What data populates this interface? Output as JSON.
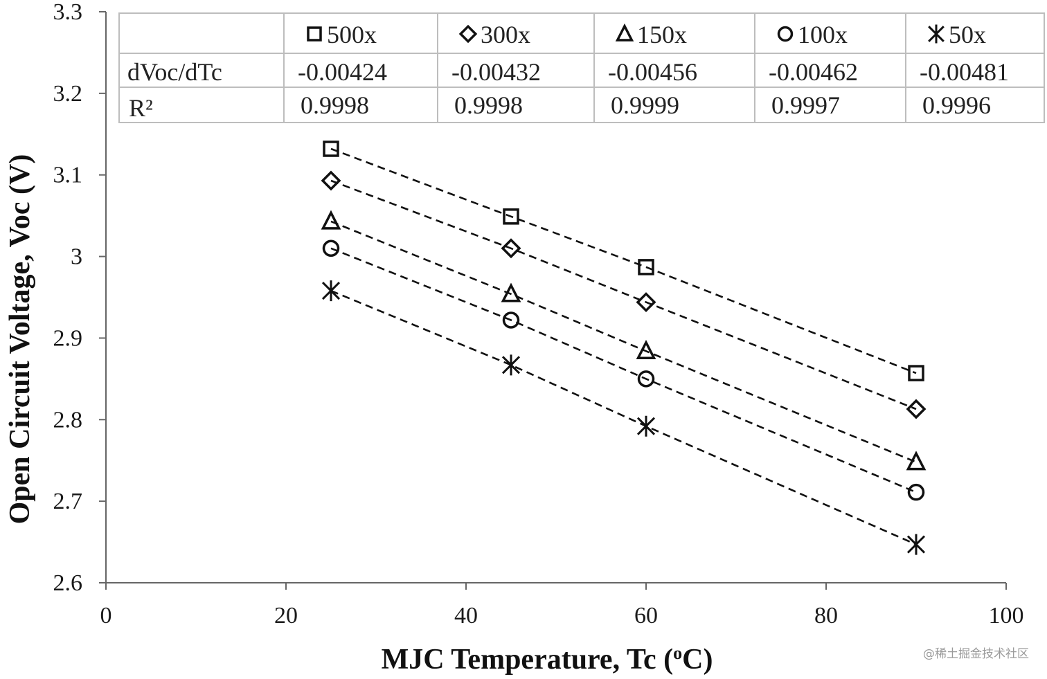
{
  "chart_data": {
    "type": "scatter",
    "xlabel": "MJC Temperature, Tc (",
    "xlabel_unit_sup": "o",
    "xlabel_unit_tail": "C)",
    "ylabel": "Open Circuit Voltage, Voc (V)",
    "xlim": [
      0,
      100
    ],
    "ylim": [
      2.6,
      3.3
    ],
    "x_ticks": [
      "0",
      "20",
      "40",
      "60",
      "80",
      "100"
    ],
    "y_ticks": [
      "2.6",
      "2.7",
      "2.8",
      "2.9",
      "3",
      "3.1",
      "3.2",
      "3.3"
    ],
    "grid": false,
    "legend_placement": "top (inside table)",
    "line_style": "dashed",
    "x": [
      25,
      45,
      60,
      90
    ],
    "series": [
      {
        "name": "500x",
        "marker": "square",
        "values": [
          3.132,
          3.049,
          2.987,
          2.857
        ]
      },
      {
        "name": "300x",
        "marker": "diamond",
        "values": [
          3.093,
          3.01,
          2.944,
          2.813
        ]
      },
      {
        "name": "150x",
        "marker": "triangle",
        "values": [
          3.043,
          2.954,
          2.884,
          2.748
        ]
      },
      {
        "name": "100x",
        "marker": "circle",
        "values": [
          3.01,
          2.922,
          2.85,
          2.711
        ]
      },
      {
        "name": "50x",
        "marker": "asterisk",
        "values": [
          2.958,
          2.867,
          2.792,
          2.647
        ]
      }
    ],
    "table": {
      "row_labels": [
        "dVoc/dTc",
        "R²"
      ],
      "dvoc_dtc": [
        "-0.00424",
        "-0.00432",
        "-0.00456",
        "-0.00462",
        "-0.00481"
      ],
      "r2": [
        "0.9998",
        "0.9998",
        "0.9999",
        "0.9997",
        "0.9996"
      ]
    }
  },
  "watermark": "@稀土掘金技术社区",
  "colors": {
    "ink": "#111111",
    "frame": "#666666",
    "table_line": "#bdbdbd"
  }
}
